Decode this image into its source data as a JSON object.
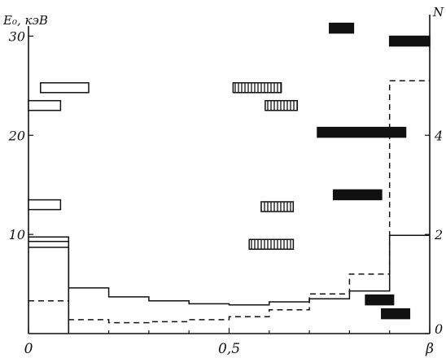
{
  "chart_data": {
    "type": "bar",
    "xlabel": "β",
    "ylabel_left": "E₀, кэВ",
    "ylabel_right": "N",
    "xlim": [
      0,
      1
    ],
    "ylim_left": [
      0,
      32
    ],
    "ylim_right": [
      0,
      6.4
    ],
    "x_ticks": [
      {
        "value": 0,
        "label": "0"
      },
      {
        "value": 0.5,
        "label": "0,5"
      },
      {
        "value": 1.0,
        "label": "β"
      }
    ],
    "x_minor_ticks": [
      0.1,
      0.2,
      0.3,
      0.4,
      0.6,
      0.7,
      0.8,
      0.9
    ],
    "left_ticks": [
      {
        "value": 10,
        "label": "10"
      },
      {
        "value": 20,
        "label": "20"
      },
      {
        "value": 30,
        "label": "30"
      }
    ],
    "right_ticks": [
      {
        "value": 0,
        "label": "0"
      },
      {
        "value": 2,
        "label": "2"
      },
      {
        "value": 4,
        "label": "4"
      }
    ],
    "energy_bars": [
      {
        "style": "open",
        "x0": 0.0,
        "x1": 0.08,
        "y": 23.0
      },
      {
        "style": "open",
        "x0": 0.03,
        "x1": 0.15,
        "y": 24.8
      },
      {
        "style": "open",
        "x0": 0.0,
        "x1": 0.08,
        "y": 13.0
      },
      {
        "style": "hatched",
        "x0": 0.51,
        "x1": 0.63,
        "y": 24.8
      },
      {
        "style": "hatched",
        "x0": 0.59,
        "x1": 0.67,
        "y": 23.0
      },
      {
        "style": "hatched",
        "x0": 0.58,
        "x1": 0.66,
        "y": 12.8
      },
      {
        "style": "hatched",
        "x0": 0.55,
        "x1": 0.66,
        "y": 9.0
      },
      {
        "style": "solid",
        "x0": 0.75,
        "x1": 0.81,
        "y": 30.8
      },
      {
        "style": "solid",
        "x0": 0.9,
        "x1": 1.0,
        "y": 29.5
      },
      {
        "style": "solid",
        "x0": 0.72,
        "x1": 0.94,
        "y": 20.3
      },
      {
        "style": "solid",
        "x0": 0.76,
        "x1": 0.88,
        "y": 14.0
      },
      {
        "style": "solid",
        "x0": 0.84,
        "x1": 0.91,
        "y": 3.4
      },
      {
        "style": "solid",
        "x0": 0.88,
        "x1": 0.95,
        "y": 2.0
      }
    ],
    "series": [
      {
        "style": "solid",
        "bins": [
          0,
          0.1,
          0.2,
          0.3,
          0.4,
          0.5,
          0.6,
          0.7,
          0.8,
          0.9,
          1.0
        ],
        "values": [
          1.95,
          0.92,
          0.74,
          0.66,
          0.6,
          0.58,
          0.64,
          0.7,
          0.86,
          1.98
        ]
      },
      {
        "style": "dashed",
        "bins": [
          0,
          0.1,
          0.2,
          0.3,
          0.4,
          0.5,
          0.6,
          0.7,
          0.8,
          0.9,
          1.0
        ],
        "values": [
          0.66,
          0.28,
          0.22,
          0.24,
          0.28,
          0.34,
          0.48,
          0.8,
          1.2,
          5.1
        ]
      },
      {
        "style": "solid",
        "bins": [
          0,
          0.1
        ],
        "values": [
          1.74
        ]
      },
      {
        "style": "solid",
        "bins": [
          0,
          0.1
        ],
        "values": [
          1.86
        ]
      }
    ]
  }
}
